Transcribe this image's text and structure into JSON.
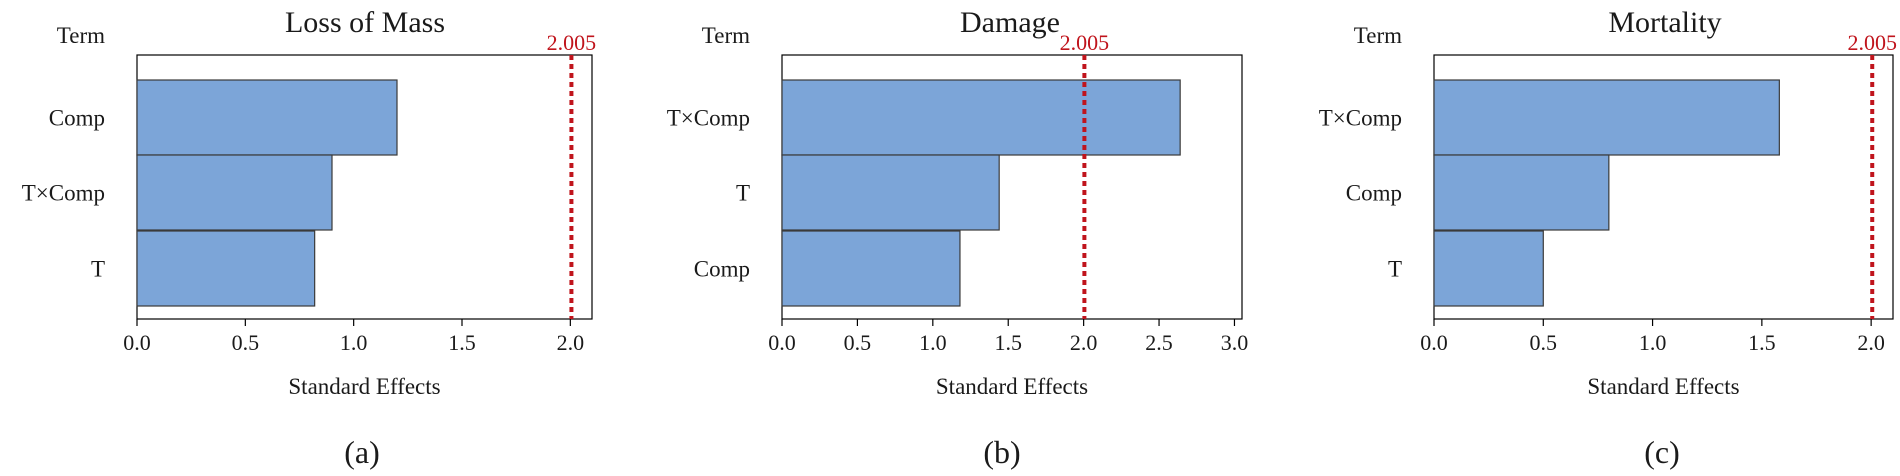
{
  "colors": {
    "bar": "#7ca5d8",
    "reference": "#c0141c"
  },
  "chart_data": [
    {
      "type": "bar",
      "orientation": "horizontal",
      "title": "Loss of Mass",
      "term_label": "Term",
      "categories": [
        "Comp",
        "T×Comp",
        "T"
      ],
      "values": [
        1.2,
        0.9,
        0.82
      ],
      "reference_line": {
        "value": 2.005,
        "label": "2.005"
      },
      "xlabel": "Standard Effects",
      "xlim": [
        0,
        2.1
      ],
      "xticks": [
        "0.0",
        "0.5",
        "1.0",
        "1.5",
        "2.0"
      ],
      "subfigure_label": "(a)"
    },
    {
      "type": "bar",
      "orientation": "horizontal",
      "title": "Damage",
      "term_label": "Term",
      "categories": [
        "T×Comp",
        "T",
        "Comp"
      ],
      "values": [
        2.64,
        1.44,
        1.18
      ],
      "reference_line": {
        "value": 2.005,
        "label": "2.005"
      },
      "xlabel": "Standard Effects",
      "xlim": [
        0,
        3.05
      ],
      "xticks": [
        "0.0",
        "0.5",
        "1.0",
        "1.5",
        "2.0",
        "2.5",
        "3.0"
      ],
      "subfigure_label": "(b)"
    },
    {
      "type": "bar",
      "orientation": "horizontal",
      "title": "Mortality",
      "term_label": "Term",
      "categories": [
        "T×Comp",
        "Comp",
        "T"
      ],
      "values": [
        1.58,
        0.8,
        0.5
      ],
      "reference_line": {
        "value": 2.005,
        "label": "2.005"
      },
      "xlabel": "Standard Effects",
      "xlim": [
        0,
        2.1
      ],
      "xticks": [
        "0.0",
        "0.5",
        "1.0",
        "1.5",
        "2.0"
      ],
      "subfigure_label": "(c)"
    }
  ]
}
